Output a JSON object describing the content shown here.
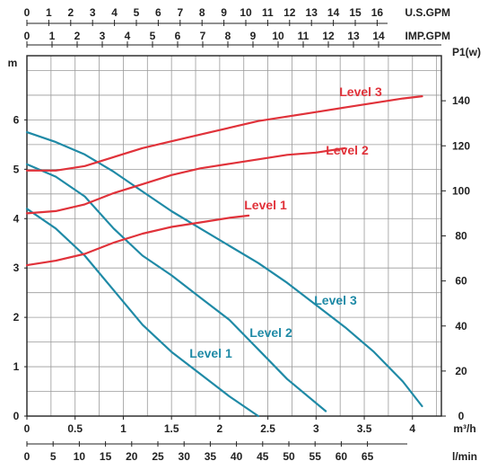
{
  "chart_data": {
    "type": "line",
    "title": "",
    "axes": {
      "head": {
        "label": "m",
        "range": [
          0,
          7.3
        ],
        "ticks": [
          0,
          1,
          2,
          3,
          4,
          5,
          6
        ]
      },
      "power": {
        "label": "P1(w)",
        "range": [
          0,
          160
        ],
        "ticks": [
          0,
          20,
          40,
          60,
          80,
          100,
          120,
          140
        ]
      },
      "flow_m3h": {
        "label": "m³/h",
        "range": [
          0,
          4.3
        ],
        "ticks": [
          {
            "v": 0,
            "t": "0"
          },
          {
            "v": 0.5,
            "t": "0.5"
          },
          {
            "v": 1,
            "t": "1"
          },
          {
            "v": 1.5,
            "t": "1.5"
          },
          {
            "v": 2,
            "t": "2"
          },
          {
            "v": 2.5,
            "t": "2.5"
          },
          {
            "v": 3,
            "t": "3"
          },
          {
            "v": 3.5,
            "t": "3.5"
          },
          {
            "v": 4,
            "t": "4"
          }
        ]
      },
      "flow_lmin": {
        "label": "l/min",
        "ticks": [
          "0",
          "5",
          "10",
          "15",
          "20",
          "25",
          "30",
          "35",
          "40",
          "45",
          "50",
          "55",
          "60",
          "65"
        ]
      },
      "flow_usgpm": {
        "label": "U.S.GPM",
        "ticks": [
          "0",
          "1",
          "2",
          "3",
          "4",
          "5",
          "6",
          "7",
          "8",
          "9",
          "10",
          "11",
          "12",
          "13",
          "14",
          "15",
          "16"
        ]
      },
      "flow_impgpm": {
        "label": "IMP.GPM",
        "ticks": [
          "0",
          "1",
          "2",
          "3",
          "4",
          "5",
          "6",
          "7",
          "8",
          "9",
          "10",
          "11",
          "12",
          "13",
          "14"
        ]
      }
    },
    "grid": true,
    "head_series": [
      {
        "name": "Level 1",
        "color": "#1f8aa6",
        "x": [
          0,
          0.3,
          0.6,
          0.9,
          1.2,
          1.5,
          1.8,
          2.1,
          2.4
        ],
        "y": [
          4.2,
          3.8,
          3.25,
          2.55,
          1.85,
          1.3,
          0.85,
          0.4,
          0.0
        ]
      },
      {
        "name": "Level 2",
        "color": "#1f8aa6",
        "x": [
          0,
          0.3,
          0.6,
          0.9,
          1.2,
          1.5,
          1.8,
          2.1,
          2.4,
          2.7,
          3.1
        ],
        "y": [
          5.1,
          4.85,
          4.45,
          3.8,
          3.25,
          2.85,
          2.4,
          1.95,
          1.35,
          0.75,
          0.1
        ]
      },
      {
        "name": "Level 3",
        "color": "#1f8aa6",
        "x": [
          0,
          0.3,
          0.6,
          0.9,
          1.2,
          1.5,
          1.8,
          2.1,
          2.4,
          2.7,
          3.0,
          3.3,
          3.6,
          3.9,
          4.1
        ],
        "y": [
          5.75,
          5.55,
          5.3,
          4.95,
          4.55,
          4.15,
          3.8,
          3.45,
          3.1,
          2.7,
          2.25,
          1.8,
          1.3,
          0.7,
          0.2
        ]
      }
    ],
    "power_series": [
      {
        "name": "Level 1",
        "color": "#e0323a",
        "x": [
          0,
          0.3,
          0.6,
          0.9,
          1.2,
          1.5,
          1.8,
          2.1,
          2.3
        ],
        "y": [
          67,
          69,
          72,
          77,
          81,
          84,
          86,
          88,
          89
        ]
      },
      {
        "name": "Level 2",
        "color": "#e0323a",
        "x": [
          0,
          0.3,
          0.6,
          0.9,
          1.2,
          1.5,
          1.8,
          2.1,
          2.4,
          2.7,
          3.0,
          3.3
        ],
        "y": [
          90,
          91,
          94,
          99,
          103,
          107,
          110,
          112,
          114,
          116,
          117,
          119
        ]
      },
      {
        "name": "Level 3",
        "color": "#e0323a",
        "x": [
          0,
          0.3,
          0.6,
          0.9,
          1.2,
          1.5,
          1.8,
          2.1,
          2.4,
          2.7,
          3.0,
          3.3,
          3.6,
          3.9,
          4.1
        ],
        "y": [
          109,
          109,
          111,
          115,
          119,
          122,
          125,
          128,
          131,
          133,
          135,
          137,
          139,
          141,
          142
        ]
      }
    ]
  }
}
